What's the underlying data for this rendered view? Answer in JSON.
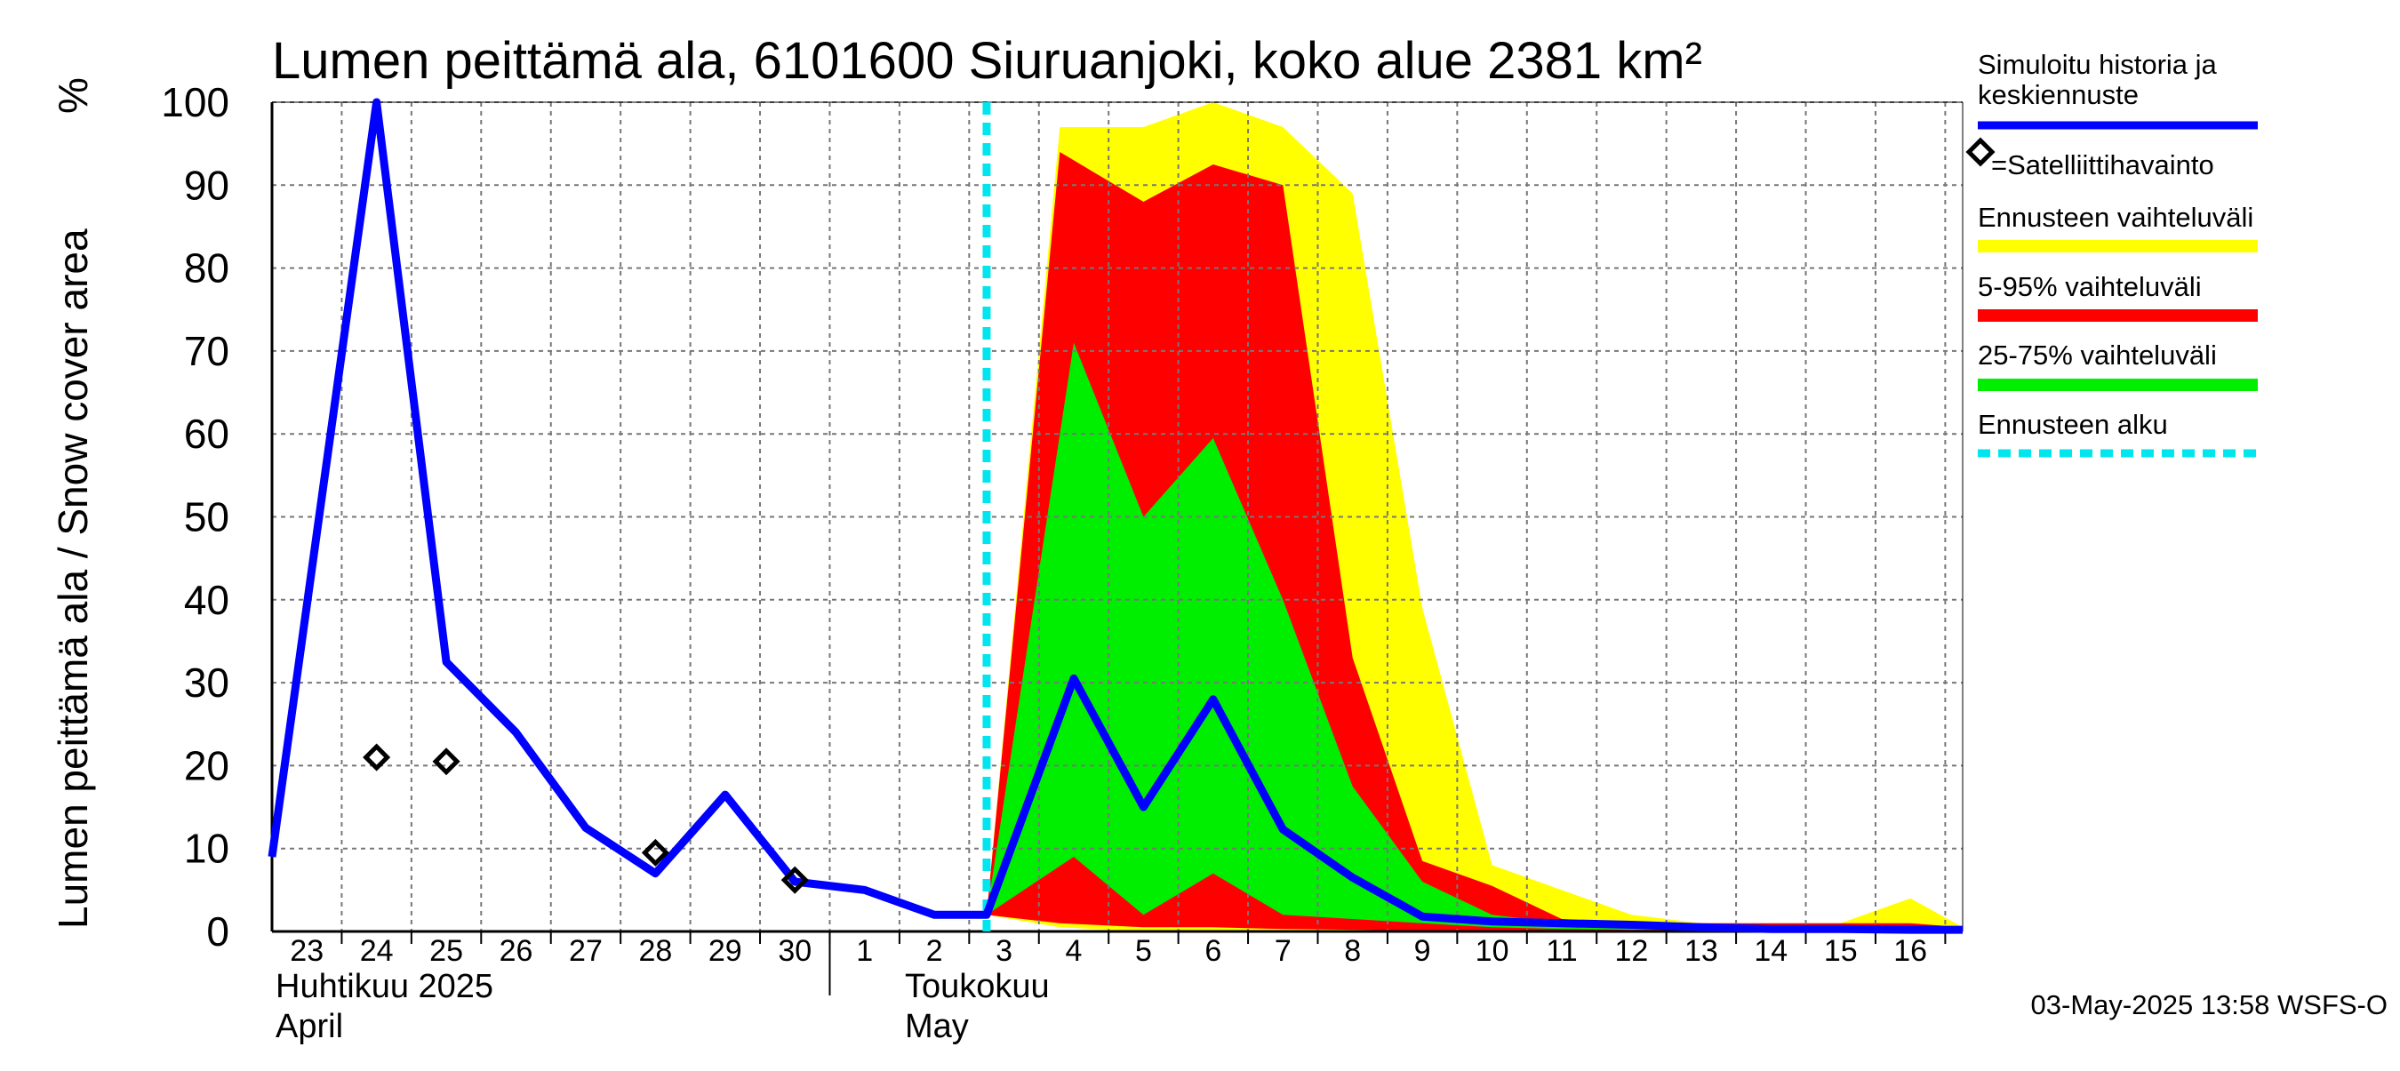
{
  "chart_data": {
    "type": "area",
    "title": "Lumen peittämä ala, 6101600 Siuruanjoki, koko alue 2381 km²",
    "ylabel": "Lumen peittämä ala / Snow cover area",
    "yunit": "%",
    "ylim": [
      0,
      100
    ],
    "yticks": [
      0,
      10,
      20,
      30,
      40,
      50,
      60,
      70,
      80,
      90,
      100
    ],
    "grid": true,
    "legend_position": "right",
    "day_labels": [
      {
        "day": 23,
        "label": "23"
      },
      {
        "day": 24,
        "label": "24"
      },
      {
        "day": 25,
        "label": "25"
      },
      {
        "day": 26,
        "label": "26"
      },
      {
        "day": 27,
        "label": "27"
      },
      {
        "day": 28,
        "label": "28"
      },
      {
        "day": 29,
        "label": "29"
      },
      {
        "day": 30,
        "label": "30"
      },
      {
        "day": 31,
        "label": "1"
      },
      {
        "day": 32,
        "label": "2"
      },
      {
        "day": 33,
        "label": "3"
      },
      {
        "day": 34,
        "label": "4"
      },
      {
        "day": 35,
        "label": "5"
      },
      {
        "day": 36,
        "label": "6"
      },
      {
        "day": 37,
        "label": "7"
      },
      {
        "day": 38,
        "label": "8"
      },
      {
        "day": 39,
        "label": "9"
      },
      {
        "day": 40,
        "label": "10"
      },
      {
        "day": 41,
        "label": "11"
      },
      {
        "day": 42,
        "label": "12"
      },
      {
        "day": 43,
        "label": "13"
      },
      {
        "day": 44,
        "label": "14"
      },
      {
        "day": 45,
        "label": "15"
      },
      {
        "day": 46,
        "label": "16"
      }
    ],
    "xlim": [
      22.5,
      46.75
    ],
    "months": [
      {
        "name_fi": "Huhtikuu  2025",
        "name_en": "April"
      },
      {
        "name_fi": "Toukokuu",
        "name_en": "May"
      }
    ],
    "month_boundary_day": 30.5,
    "forecast_start_day": 32.75,
    "colors": {
      "simulated": "#0000ff",
      "range_full": "#ffff00",
      "range_5_95": "#ff0000",
      "range_25_75": "#00ee00",
      "forecast_start": "#00e5ee",
      "grid": "#777777"
    },
    "series": [
      {
        "name": "Simuloitu historia ja keskiennuste",
        "points": [
          [
            22.5,
            9
          ],
          [
            24,
            100
          ],
          [
            25,
            32.5
          ],
          [
            26,
            24
          ],
          [
            27,
            12.5
          ],
          [
            28,
            7
          ],
          [
            29,
            16.5
          ],
          [
            30,
            6
          ],
          [
            31,
            5
          ],
          [
            32,
            2
          ],
          [
            32.75,
            2
          ],
          [
            34,
            30.5
          ],
          [
            35,
            15
          ],
          [
            36,
            28
          ],
          [
            37,
            12.3
          ],
          [
            38,
            6.5
          ],
          [
            39,
            1.8
          ],
          [
            40,
            1.2
          ],
          [
            41,
            1
          ],
          [
            42,
            0.8
          ],
          [
            43,
            0.5
          ],
          [
            44,
            0.3
          ],
          [
            45,
            0.3
          ],
          [
            46,
            0.2
          ],
          [
            46.75,
            0.2
          ]
        ]
      }
    ],
    "satellite_observations": {
      "name": "=Satelliittihavainto",
      "points": [
        [
          24,
          21
        ],
        [
          25,
          20.5
        ],
        [
          28,
          9.5
        ],
        [
          30,
          6.2
        ]
      ]
    },
    "bands": [
      {
        "name": "Ennusteen vaihteluväli",
        "upper": [
          [
            32.75,
            2
          ],
          [
            33.8,
            97
          ],
          [
            35,
            97
          ],
          [
            36,
            100
          ],
          [
            37,
            97
          ],
          [
            38,
            89
          ],
          [
            39,
            39
          ],
          [
            40,
            8
          ],
          [
            41,
            5
          ],
          [
            42,
            2
          ],
          [
            43,
            1
          ],
          [
            44,
            1
          ],
          [
            45,
            1
          ],
          [
            46,
            4
          ],
          [
            46.75,
            0.5
          ]
        ],
        "lower": [
          [
            32.75,
            2
          ],
          [
            33.8,
            0.5
          ],
          [
            35,
            0
          ],
          [
            36,
            0
          ],
          [
            37,
            0
          ],
          [
            38,
            0
          ],
          [
            39,
            0
          ],
          [
            40,
            0
          ],
          [
            41,
            0
          ],
          [
            42,
            0
          ],
          [
            43,
            0
          ],
          [
            44,
            0
          ],
          [
            45,
            0
          ],
          [
            46,
            0
          ],
          [
            46.75,
            0
          ]
        ]
      },
      {
        "name": "5-95% vaihteluväli",
        "upper": [
          [
            32.75,
            2
          ],
          [
            33.8,
            94
          ],
          [
            35,
            88
          ],
          [
            36,
            92.5
          ],
          [
            37,
            90
          ],
          [
            38,
            33
          ],
          [
            39,
            8.5
          ],
          [
            40,
            5.5
          ],
          [
            41,
            1.5
          ],
          [
            42,
            1
          ],
          [
            43,
            1
          ],
          [
            44,
            1
          ],
          [
            45,
            1
          ],
          [
            46,
            1
          ],
          [
            46.75,
            0.5
          ]
        ],
        "lower": [
          [
            32.75,
            2
          ],
          [
            33.8,
            1
          ],
          [
            35,
            0.5
          ],
          [
            36,
            0.5
          ],
          [
            37,
            0.3
          ],
          [
            38,
            0.2
          ],
          [
            39,
            0.1
          ],
          [
            40,
            0
          ],
          [
            41,
            0
          ],
          [
            42,
            0
          ],
          [
            43,
            0
          ],
          [
            44,
            0
          ],
          [
            45,
            0
          ],
          [
            46,
            0
          ],
          [
            46.75,
            0
          ]
        ]
      },
      {
        "name": "25-75% vaihteluväli",
        "upper": [
          [
            32.75,
            2
          ],
          [
            34,
            71
          ],
          [
            35,
            50
          ],
          [
            36,
            59.5
          ],
          [
            37,
            40
          ],
          [
            38,
            17.5
          ],
          [
            39,
            6
          ],
          [
            40,
            2
          ],
          [
            41,
            1
          ],
          [
            42,
            0.8
          ],
          [
            43,
            0.5
          ],
          [
            44,
            0.5
          ],
          [
            45,
            0.5
          ],
          [
            46,
            0.5
          ],
          [
            46.75,
            0.3
          ]
        ],
        "lower": [
          [
            32.75,
            2
          ],
          [
            34,
            9
          ],
          [
            35,
            2
          ],
          [
            36,
            7
          ],
          [
            37,
            2
          ],
          [
            38,
            1.5
          ],
          [
            39,
            1
          ],
          [
            40,
            0.5
          ],
          [
            41,
            0.3
          ],
          [
            42,
            0.2
          ],
          [
            43,
            0.2
          ],
          [
            44,
            0.1
          ],
          [
            45,
            0.1
          ],
          [
            46,
            0
          ],
          [
            46.75,
            0
          ]
        ]
      }
    ],
    "legend": [
      {
        "label": "Simuloitu historia ja keskiennuste",
        "label_lines": [
          "Simuloitu historia ja",
          "keskiennuste"
        ],
        "style": "line",
        "color": "#0000ff"
      },
      {
        "label": "=Satelliittihavainto",
        "style": "diamond",
        "color": "#000000"
      },
      {
        "label": "Ennusteen vaihteluväli",
        "style": "band",
        "color": "#ffff00"
      },
      {
        "label": "5-95% vaihteluväli",
        "style": "band",
        "color": "#ff0000"
      },
      {
        "label": "25-75% vaihteluväli",
        "style": "band",
        "color": "#00ee00"
      },
      {
        "label": "Ennusteen alku",
        "style": "dashed",
        "color": "#00e5ee"
      }
    ],
    "timestamp": "03-May-2025 13:58 WSFS-O"
  }
}
